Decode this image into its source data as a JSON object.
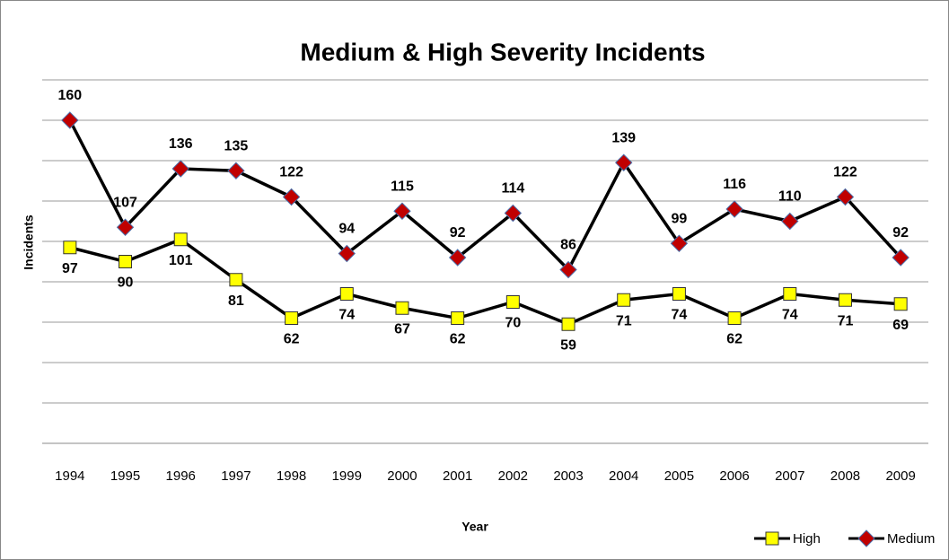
{
  "chart_data": {
    "type": "line",
    "title": "Medium & High Severity Incidents",
    "x_label": "Year",
    "y_label": "Incidents",
    "categories": [
      "1994",
      "1995",
      "1996",
      "1997",
      "1998",
      "1999",
      "2000",
      "2001",
      "2002",
      "2003",
      "2004",
      "2005",
      "2006",
      "2007",
      "2008",
      "2009"
    ],
    "series": [
      {
        "name": "High",
        "color": "#000000",
        "marker": "square",
        "marker_color": "#ffff00",
        "values": [
          97,
          90,
          101,
          81,
          62,
          74,
          67,
          62,
          70,
          59,
          71,
          74,
          62,
          74,
          71,
          69
        ]
      },
      {
        "name": "Medium",
        "color": "#000000",
        "marker": "diamond",
        "marker_color": "#c00000",
        "values": [
          160,
          107,
          136,
          135,
          122,
          94,
          115,
          92,
          114,
          86,
          139,
          99,
          116,
          110,
          122,
          92
        ]
      }
    ],
    "ylim": [
      0,
      180
    ],
    "yticks": [
      0,
      20,
      40,
      60,
      80,
      100,
      120,
      140,
      160,
      180
    ],
    "grid": true,
    "legend": "bottom-right"
  }
}
